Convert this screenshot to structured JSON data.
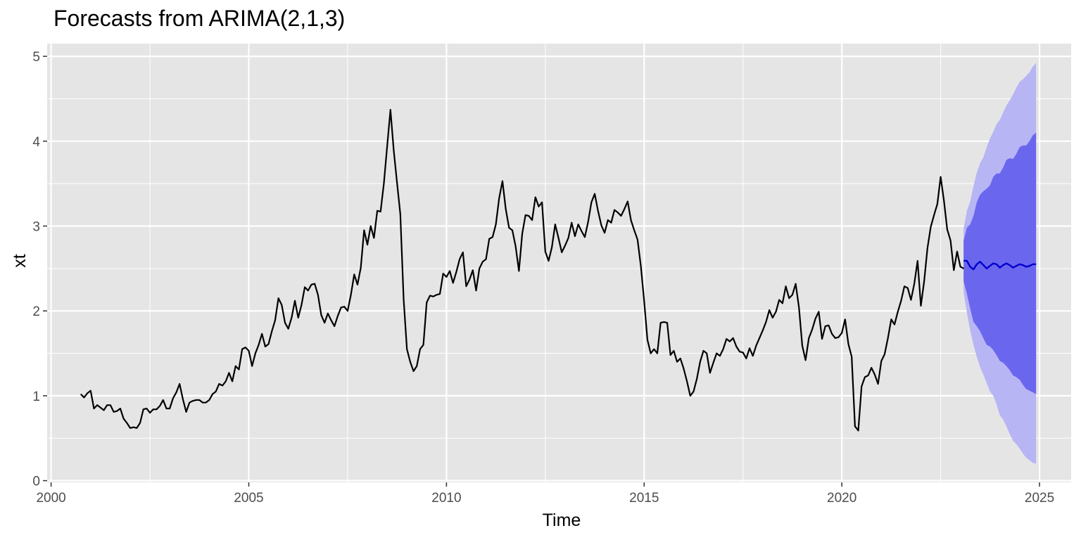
{
  "chart_data": {
    "type": "line",
    "title": "Forecasts from ARIMA(2,1,3)",
    "xlabel": "Time",
    "ylabel": "xt",
    "xlim": [
      1999.9,
      2025.8
    ],
    "ylim": [
      -0.02,
      5.15
    ],
    "x_ticks": [
      2000,
      2005,
      2010,
      2015,
      2020,
      2025
    ],
    "x_tick_labels": [
      "2000",
      "2005",
      "2010",
      "2015",
      "2020",
      "2025"
    ],
    "y_ticks": [
      0,
      1,
      2,
      3,
      4,
      5
    ],
    "y_tick_labels": [
      "0",
      "1",
      "2",
      "3",
      "4",
      "5"
    ],
    "grid": true,
    "colors": {
      "panel": "#e5e5e5",
      "grid": "#ffffff",
      "series": "#000000",
      "forecast": "#0000cc",
      "band80": "#6b66ee",
      "band95": "#b7b5f4"
    },
    "series": [
      {
        "start": 2000.75,
        "step": 0.08333,
        "values": [
          1.02,
          0.98,
          1.03,
          1.06,
          0.85,
          0.89,
          0.86,
          0.83,
          0.89,
          0.89,
          0.81,
          0.82,
          0.85,
          0.73,
          0.68,
          0.62,
          0.63,
          0.62,
          0.68,
          0.84,
          0.85,
          0.8,
          0.84,
          0.84,
          0.88,
          0.95,
          0.85,
          0.85,
          0.97,
          1.04,
          1.14,
          0.96,
          0.81,
          0.92,
          0.94,
          0.95,
          0.95,
          0.92,
          0.92,
          0.95,
          1.02,
          1.05,
          1.14,
          1.12,
          1.17,
          1.27,
          1.17,
          1.35,
          1.31,
          1.55,
          1.57,
          1.53,
          1.35,
          1.5,
          1.6,
          1.73,
          1.58,
          1.61,
          1.76,
          1.89,
          2.15,
          2.07,
          1.86,
          1.79,
          1.92,
          2.12,
          1.92,
          2.07,
          2.28,
          2.24,
          2.31,
          2.32,
          2.19,
          1.95,
          1.86,
          1.97,
          1.89,
          1.82,
          1.94,
          2.04,
          2.05,
          2.0,
          2.19,
          2.43,
          2.31,
          2.51,
          2.95,
          2.78,
          3.0,
          2.86,
          3.18,
          3.17,
          3.5,
          3.94,
          4.37,
          3.89,
          3.51,
          3.14,
          2.14,
          1.55,
          1.4,
          1.29,
          1.35,
          1.55,
          1.6,
          2.1,
          2.18,
          2.17,
          2.19,
          2.2,
          2.44,
          2.4,
          2.47,
          2.33,
          2.46,
          2.61,
          2.69,
          2.29,
          2.37,
          2.48,
          2.24,
          2.5,
          2.58,
          2.61,
          2.85,
          2.87,
          3.02,
          3.33,
          3.53,
          3.2,
          2.98,
          2.95,
          2.76,
          2.47,
          2.91,
          3.13,
          3.12,
          3.07,
          3.34,
          3.23,
          3.28,
          2.7,
          2.59,
          2.75,
          3.02,
          2.86,
          2.69,
          2.77,
          2.86,
          3.04,
          2.88,
          3.02,
          2.94,
          2.87,
          3.05,
          3.28,
          3.38,
          3.18,
          3.01,
          2.92,
          3.07,
          3.04,
          3.19,
          3.16,
          3.12,
          3.2,
          3.29,
          3.07,
          2.95,
          2.84,
          2.53,
          2.12,
          1.66,
          1.5,
          1.55,
          1.5,
          1.86,
          1.87,
          1.86,
          1.48,
          1.53,
          1.4,
          1.44,
          1.32,
          1.17,
          1.0,
          1.05,
          1.2,
          1.4,
          1.53,
          1.5,
          1.27,
          1.39,
          1.5,
          1.47,
          1.55,
          1.67,
          1.64,
          1.68,
          1.58,
          1.52,
          1.51,
          1.44,
          1.56,
          1.47,
          1.59,
          1.68,
          1.77,
          1.87,
          2.01,
          1.92,
          1.99,
          2.13,
          2.09,
          2.29,
          2.15,
          2.19,
          2.32,
          2.04,
          1.59,
          1.42,
          1.68,
          1.78,
          1.91,
          1.99,
          1.67,
          1.82,
          1.83,
          1.73,
          1.68,
          1.69,
          1.74,
          1.9,
          1.61,
          1.46,
          0.64,
          0.59,
          1.11,
          1.22,
          1.24,
          1.33,
          1.25,
          1.14,
          1.41,
          1.49,
          1.68,
          1.9,
          1.84,
          1.99,
          2.12,
          2.29,
          2.27,
          2.13,
          2.32,
          2.59,
          2.06,
          2.35,
          2.74,
          2.99,
          3.13,
          3.26,
          3.58,
          3.3,
          2.96,
          2.83,
          2.48,
          2.7,
          2.52,
          2.5
        ]
      }
    ],
    "forecast": {
      "start": 2023.08,
      "step": 0.08333,
      "mean": [
        2.59,
        2.59,
        2.52,
        2.49,
        2.55,
        2.58,
        2.54,
        2.5,
        2.53,
        2.56,
        2.55,
        2.51,
        2.54,
        2.56,
        2.54,
        2.51,
        2.53,
        2.55,
        2.54,
        2.52,
        2.53,
        2.55,
        2.55
      ],
      "lo80": [
        2.35,
        2.2,
        2.03,
        1.87,
        1.82,
        1.76,
        1.68,
        1.6,
        1.58,
        1.54,
        1.48,
        1.41,
        1.39,
        1.35,
        1.3,
        1.24,
        1.22,
        1.19,
        1.13,
        1.08,
        1.06,
        1.04,
        1.02
      ],
      "hi80": [
        2.83,
        2.98,
        3.02,
        3.12,
        3.28,
        3.37,
        3.41,
        3.44,
        3.48,
        3.58,
        3.62,
        3.62,
        3.69,
        3.78,
        3.8,
        3.79,
        3.85,
        3.93,
        3.95,
        3.95,
        4.0,
        4.07,
        4.1
      ],
      "lo95": [
        2.22,
        1.98,
        1.77,
        1.6,
        1.46,
        1.34,
        1.25,
        1.15,
        1.05,
        1.0,
        0.9,
        0.77,
        0.72,
        0.64,
        0.55,
        0.47,
        0.43,
        0.38,
        0.32,
        0.27,
        0.24,
        0.21,
        0.2
      ],
      "hi95": [
        2.97,
        3.18,
        3.29,
        3.47,
        3.63,
        3.74,
        3.81,
        3.93,
        4.03,
        4.11,
        4.2,
        4.25,
        4.34,
        4.42,
        4.48,
        4.55,
        4.63,
        4.7,
        4.73,
        4.77,
        4.81,
        4.88,
        4.92
      ]
    }
  }
}
